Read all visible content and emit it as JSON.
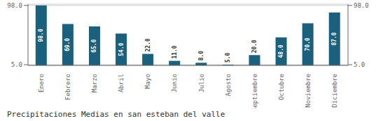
{
  "chart_data": {
    "type": "bar",
    "title": "Precipitaciones Medias en san esteban del valle",
    "categories": [
      "Enero",
      "Febrero",
      "Marzo",
      "Abril",
      "Mayo",
      "Junio",
      "Julio",
      "Agosto",
      "Septiembre",
      "Octubre",
      "Noviembre",
      "Diciembre"
    ],
    "values": [
      98.0,
      69.0,
      65.0,
      54.0,
      22.0,
      11.0,
      8.0,
      5.0,
      20.0,
      48.0,
      70.0,
      87.0
    ],
    "value_labels": [
      "98.0",
      "69.0",
      "65.0",
      "54.0",
      "22.0",
      "11.0",
      "8.0",
      "5.0",
      "20.0",
      "48.0",
      "70.0",
      "87.0"
    ],
    "color": "#1b607c",
    "ylim": [
      4.0,
      100.0
    ],
    "yticks": [
      {
        "value": 5.0,
        "label": "5.0"
      },
      {
        "value": 98.0,
        "label": "98.0"
      }
    ],
    "y2lim": [
      4.0,
      100.0
    ],
    "y2ticks": [
      {
        "value": 5.0,
        "label": "5.0"
      },
      {
        "value": 98.0,
        "label": "98.0"
      }
    ],
    "grid": true,
    "data_labels": true
  }
}
